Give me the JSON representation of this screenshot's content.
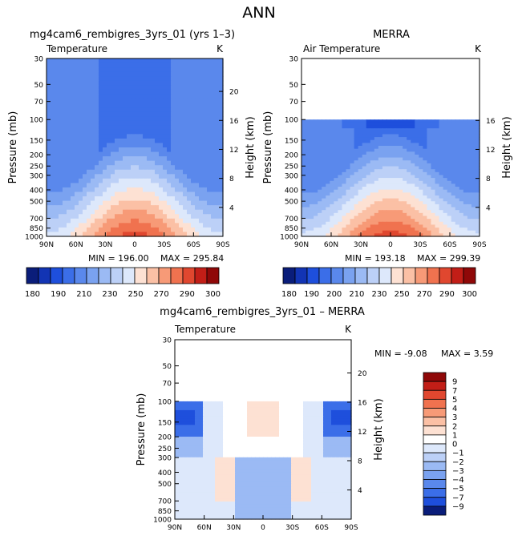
{
  "figure_title": "ANN",
  "chart_data": [
    {
      "type": "heatmap",
      "id": "model",
      "title": "mg4cam6_rembigres_3yrs_01 (yrs 1–3)",
      "subtitle_left": "Temperature",
      "subtitle_right": "K",
      "xlabel": "",
      "ylabel": "Pressure (mb)",
      "y2label": "Height (km)",
      "x_ticks": [
        "90N",
        "60N",
        "30N",
        "0",
        "30S",
        "60S",
        "90S"
      ],
      "y_ticks": [
        "30",
        "50",
        "70",
        "100",
        "150",
        "200",
        "250",
        "300",
        "400",
        "500",
        "700",
        "850",
        "1000"
      ],
      "y_ticks_values": [
        30,
        50,
        70,
        100,
        150,
        200,
        250,
        300,
        400,
        500,
        700,
        850,
        1000
      ],
      "y2_ticks": [
        "4",
        "8",
        "12",
        "16",
        "20"
      ],
      "y2_ticks_values": [
        4,
        8,
        12,
        16,
        20
      ],
      "ylim": [
        1000,
        30
      ],
      "xlim": [
        90,
        -90
      ],
      "min_label": "MIN = 196.00",
      "max_label": "MAX = 295.84",
      "min": 196.0,
      "max": 295.84,
      "colorbar": {
        "labels": [
          "180",
          "190",
          "210",
          "230",
          "250",
          "270",
          "290",
          "300"
        ],
        "levels": [
          180,
          185,
          190,
          200,
          210,
          220,
          230,
          240,
          250,
          260,
          270,
          280,
          290,
          295,
          300
        ]
      },
      "data_top_mb": 30
    },
    {
      "type": "heatmap",
      "id": "obs",
      "title": "MERRA",
      "subtitle_left": "Air Temperature",
      "subtitle_right": "K",
      "xlabel": "",
      "ylabel": "Pressure (mb)",
      "y2label": "Height (km)",
      "x_ticks": [
        "90N",
        "60N",
        "30N",
        "0",
        "30S",
        "60S",
        "90S"
      ],
      "y_ticks": [
        "30",
        "50",
        "70",
        "100",
        "150",
        "200",
        "250",
        "300",
        "400",
        "500",
        "700",
        "850",
        "1000"
      ],
      "y_ticks_values": [
        30,
        50,
        70,
        100,
        150,
        200,
        250,
        300,
        400,
        500,
        700,
        850,
        1000
      ],
      "y2_ticks": [
        "4",
        "8",
        "12",
        "16"
      ],
      "y2_ticks_values": [
        4,
        8,
        12,
        16
      ],
      "ylim": [
        1000,
        30
      ],
      "xlim": [
        90,
        -90
      ],
      "min_label": "MIN = 193.18",
      "max_label": "MAX = 299.39",
      "min": 193.18,
      "max": 299.39,
      "colorbar": {
        "labels": [
          "180",
          "190",
          "200",
          "210",
          "230",
          "250",
          "270",
          "290",
          "300"
        ],
        "levels": [
          180,
          185,
          190,
          200,
          210,
          220,
          230,
          240,
          250,
          260,
          270,
          280,
          290,
          295,
          300
        ]
      },
      "data_top_mb": 100
    },
    {
      "type": "heatmap",
      "id": "diff",
      "title": "mg4cam6_rembigres_3yrs_01 – MERRA",
      "subtitle_left": "Temperature",
      "subtitle_right": "K",
      "xlabel": "",
      "ylabel": "Pressure (mb)",
      "y2label": "Height (km)",
      "x_ticks": [
        "90N",
        "60N",
        "30N",
        "0",
        "30S",
        "60S",
        "90S"
      ],
      "y_ticks": [
        "30",
        "50",
        "70",
        "100",
        "150",
        "200",
        "250",
        "300",
        "400",
        "500",
        "700",
        "850",
        "1000"
      ],
      "y_ticks_values": [
        30,
        50,
        70,
        100,
        150,
        200,
        250,
        300,
        400,
        500,
        700,
        850,
        1000
      ],
      "y2_ticks": [
        "4",
        "8",
        "12",
        "16",
        "20"
      ],
      "y2_ticks_values": [
        4,
        8,
        12,
        16,
        20
      ],
      "ylim": [
        1000,
        30
      ],
      "xlim": [
        90,
        -90
      ],
      "min_label": "MIN =   -9.08",
      "max_label": "MAX =    3.59",
      "min": -9.08,
      "max": 3.59,
      "colorbar": {
        "labels": [
          "9",
          "7",
          "5",
          "4",
          "3",
          "2",
          "1",
          "0",
          "−1",
          "−2",
          "−3",
          "−4",
          "−5",
          "−7",
          "−9"
        ],
        "levels": [
          9,
          7,
          5,
          4,
          3,
          2,
          1,
          0,
          -1,
          -2,
          -3,
          -4,
          -5,
          -7,
          -9
        ]
      },
      "data_top_mb": 100
    }
  ],
  "colors": {
    "temperature_scale": [
      "#0a1d7a",
      "#1234b4",
      "#1e4fdc",
      "#3b6ee8",
      "#5a88ec",
      "#7aa2f0",
      "#9bbaf4",
      "#bcd0f7",
      "#dde8fb",
      "#fde1d3",
      "#fbc0a5",
      "#f79a77",
      "#f0724f",
      "#e0472f",
      "#c21e17",
      "#8f0808"
    ],
    "diff_scale_top_to_bottom": [
      "#8f0808",
      "#c21e17",
      "#e0472f",
      "#f0724f",
      "#f79a77",
      "#fbc0a5",
      "#fde1d3",
      "#ffffff",
      "#dde8fb",
      "#bcd0f7",
      "#9bbaf4",
      "#7aa2f0",
      "#5a88ec",
      "#3b6ee8",
      "#1e4fdc",
      "#0a1d7a"
    ]
  }
}
